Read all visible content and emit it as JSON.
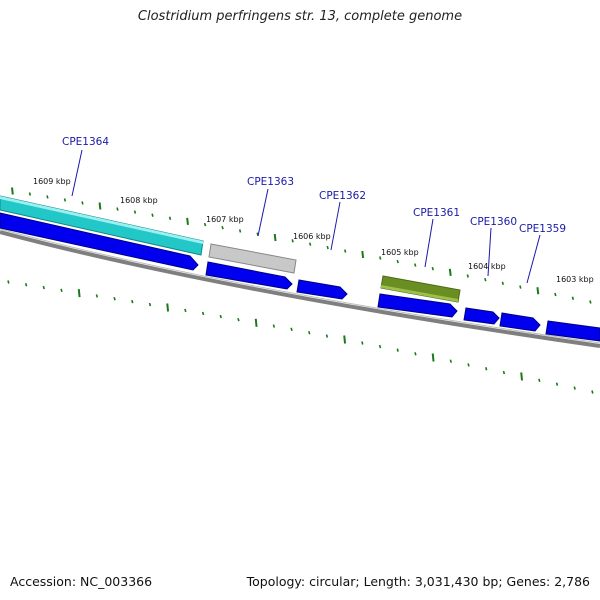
{
  "title": "Clostridium perfringens str. 13, complete genome",
  "accession": "Accession: NC_003366",
  "summary": "Topology: circular; Length: 3,031,430 bp; Genes: 2,786",
  "colors": {
    "backbone": "#808080",
    "cds": "#0000ee",
    "cds_dark": "#00008b",
    "gene_cyan": "#22c8c8",
    "gene_gray": "#c0c0c0",
    "gene_olive": "#6b8e23",
    "tick": "#1a7a1a",
    "label": "#1a1aaa"
  },
  "tick_labels": [
    "1609 kbp",
    "1608 kbp",
    "1607 kbp",
    "1606 kbp",
    "1605 kbp",
    "1604 kbp",
    "1603 kbp"
  ],
  "gene_labels": [
    "CPE1364",
    "CPE1363",
    "CPE1362",
    "CPE1361",
    "CPE1360",
    "CPE1359"
  ]
}
